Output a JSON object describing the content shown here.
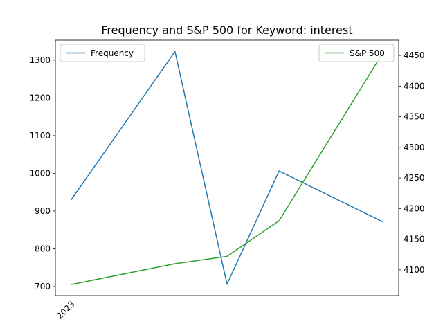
{
  "chart_data": {
    "type": "line",
    "title": "Frequency and S&P 500 for Keyword: interest",
    "x_tick_labels": [
      "2023"
    ],
    "y_left": {
      "ylim": [
        676,
        1353
      ],
      "ticks": [
        700,
        800,
        900,
        1000,
        1100,
        1200,
        1300
      ]
    },
    "y_right": {
      "ylim": [
        4058,
        4475
      ],
      "ticks": [
        4100,
        4150,
        4200,
        4250,
        4300,
        4350,
        4400,
        4450
      ]
    },
    "series": [
      {
        "name": "Frequency",
        "axis": "left",
        "color": "#1f77b4",
        "x": [
          0,
          2,
          3,
          4,
          6
        ],
        "values": [
          929,
          1323,
          706,
          1006,
          871
        ]
      },
      {
        "name": "S&P 500",
        "axis": "right",
        "color": "#2ca02c",
        "x": [
          0,
          2,
          3,
          4,
          6
        ],
        "values": [
          4076,
          4110,
          4122,
          4180,
          4455
        ]
      }
    ],
    "legend": {
      "left": "upper-left",
      "right": "upper-right"
    }
  }
}
